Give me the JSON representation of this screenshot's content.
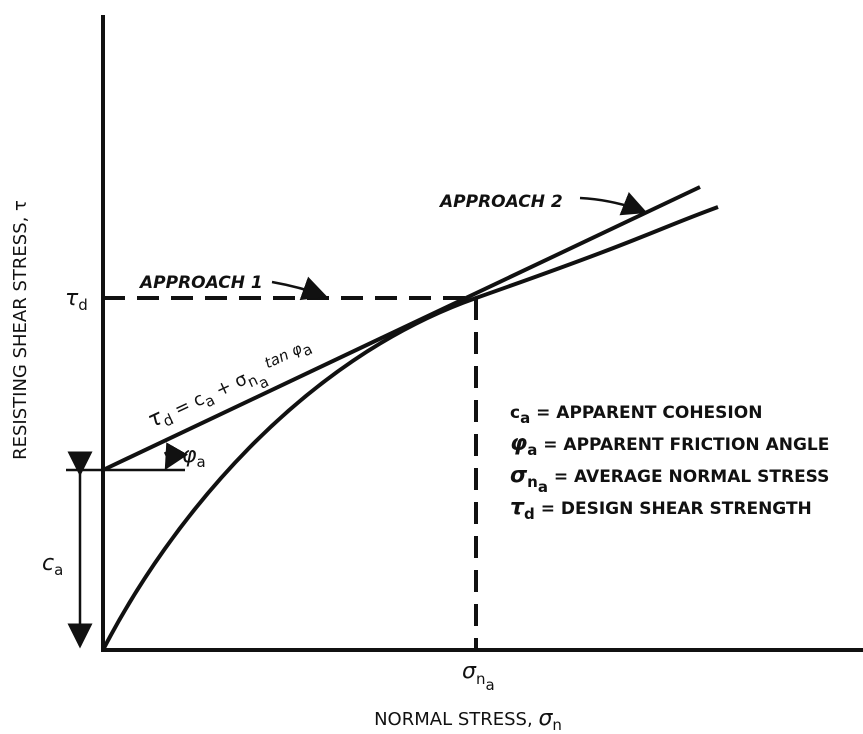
{
  "axes": {
    "y_label": "RESISTING SHEAR STRESS, τ",
    "x_label": {
      "text": "NORMAL STRESS, ",
      "symbol": "σ",
      "sub": "n"
    }
  },
  "markers": {
    "tau_d": {
      "symbol": "τ",
      "sub": "d"
    },
    "sigma_na": {
      "symbol": "σ",
      "sub": "n",
      "subsub": "a"
    },
    "c_a": {
      "symbol": "c",
      "sub": "a"
    },
    "phi_a": {
      "symbol": "φ",
      "sub": "a"
    }
  },
  "annotations": {
    "approach_1": "APPROACH 1",
    "approach_2": "APPROACH 2"
  },
  "equation": {
    "lhs": "τ",
    "lhs_sub": "d",
    "eq": " = c",
    "c_sub": "a",
    "plus": " + σ",
    "s_sub": "n",
    "s_subsub": "a",
    "tan": " tan φ",
    "phi_sub": "a"
  },
  "legend": [
    {
      "symbol": "c",
      "sub": "a",
      "text": " = APPARENT COHESION"
    },
    {
      "symbol": "φ",
      "sub": "a",
      "text": " = APPARENT FRICTION ANGLE"
    },
    {
      "symbol": "σ",
      "sub": "n",
      "subsub": "a",
      "text": " = AVERAGE NORMAL STRESS"
    },
    {
      "symbol": "τ",
      "sub": "d",
      "text": " = DESIGN SHEAR STRENGTH"
    }
  ]
}
